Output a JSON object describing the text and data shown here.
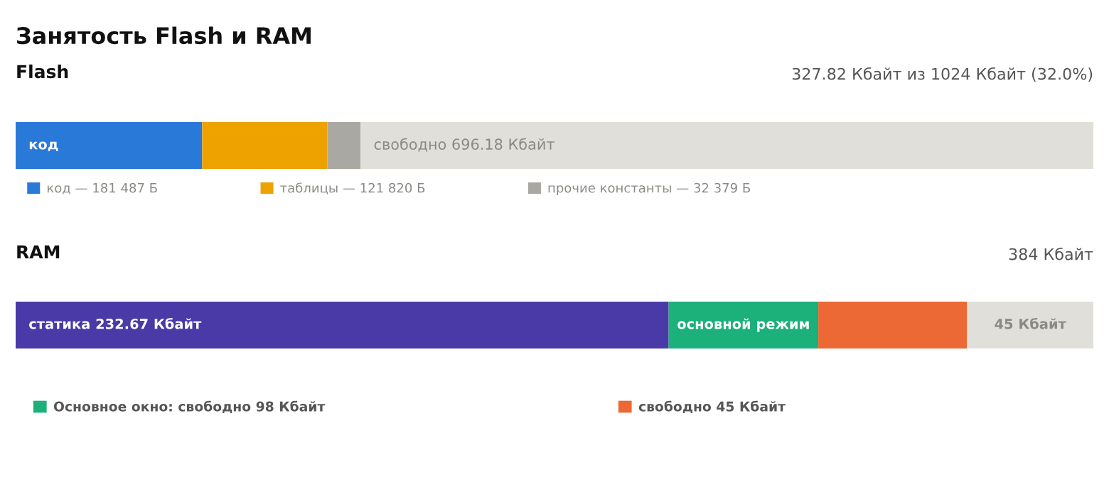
{
  "chart_data": [
    {
      "type": "bar",
      "orientation": "horizontal",
      "stacked": true,
      "title": "Занятость Flash и RAM",
      "subtitle": "Flash",
      "annotations": [
        "327.82 Кбайт из 1024 Кбайт (32.0%)"
      ],
      "categories": [
        null
      ],
      "xlim": [
        0,
        1024
      ],
      "tick_labels": false,
      "legend": "bottom",
      "series": [
        {
          "name": "код — 181 487 Б",
          "color": "#2979d8",
          "values": [
            177.23
          ],
          "value_labels": [
            "код"
          ]
        },
        {
          "name": "таблицы — 121 820 Б",
          "color": "#eda200",
          "values": [
            118.96
          ],
          "value_labels": [
            null
          ]
        },
        {
          "name": "прочие константы — 32 379 Б",
          "color": "#a9a8a2",
          "values": [
            31.62
          ],
          "value_labels": [
            null
          ]
        },
        {
          "color": "#e0dfda",
          "values": [
            696.18
          ],
          "value_labels": [
            "свободно 696.18 Кбайт"
          ]
        }
      ]
    },
    {
      "type": "bar",
      "orientation": "horizontal",
      "stacked": true,
      "title": "RAM",
      "annotations": [
        "384 Кбайт"
      ],
      "categories": [
        null
      ],
      "xlim": [
        0,
        384
      ],
      "tick_labels": false,
      "legend": "bottom",
      "series": [
        {
          "color": "#4a3aa7",
          "values": [
            232.67
          ],
          "value_labels": [
            "статика 232.67 Кбайт"
          ]
        },
        {
          "name": "Основное окно: свободно 98 Кбайт",
          "color": "#1cb07a",
          "values": [
            53.33
          ],
          "value_labels": [
            "основной режим"
          ]
        },
        {
          "name": "свободно 45 Кбайт",
          "color": "#ec6834",
          "values": [
            53
          ],
          "value_labels": [
            null
          ]
        },
        {
          "color": "#e0dfda",
          "values": [
            45
          ],
          "value_labels": [
            "45 Кбайт"
          ]
        }
      ]
    }
  ]
}
